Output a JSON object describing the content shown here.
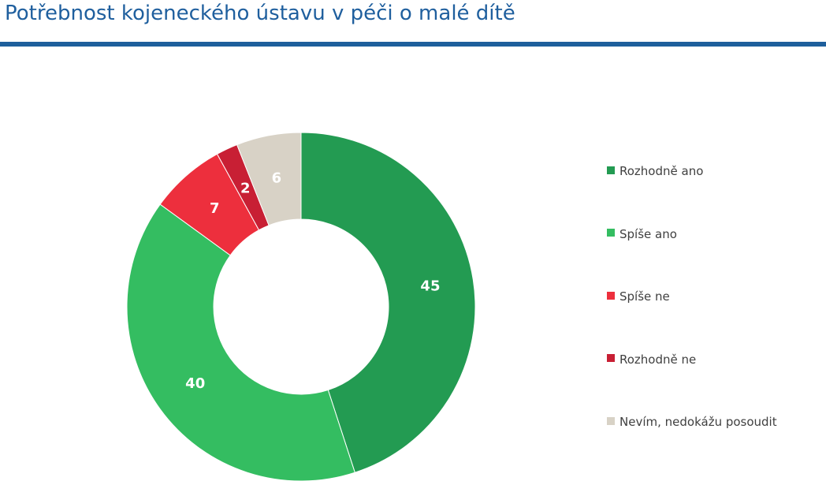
{
  "header": {
    "title": "Potřebnost kojeneckého ústavu v péči o malé dítě"
  },
  "chart_data": {
    "type": "pie",
    "donut": true,
    "title": "Potřebnost kojeneckého ústavu v péči o malé dítě",
    "categories": [
      "Rozhodně ano",
      "Spíše ano",
      "Spíše ne",
      "Rozhodně ne",
      "Nevím, nedokážu posoudit"
    ],
    "values": [
      45,
      40,
      7,
      2,
      6
    ],
    "colors": [
      "#239b52",
      "#34bd61",
      "#ed2f3d",
      "#c81f34",
      "#d8d2c6"
    ],
    "legend_position": "right"
  }
}
